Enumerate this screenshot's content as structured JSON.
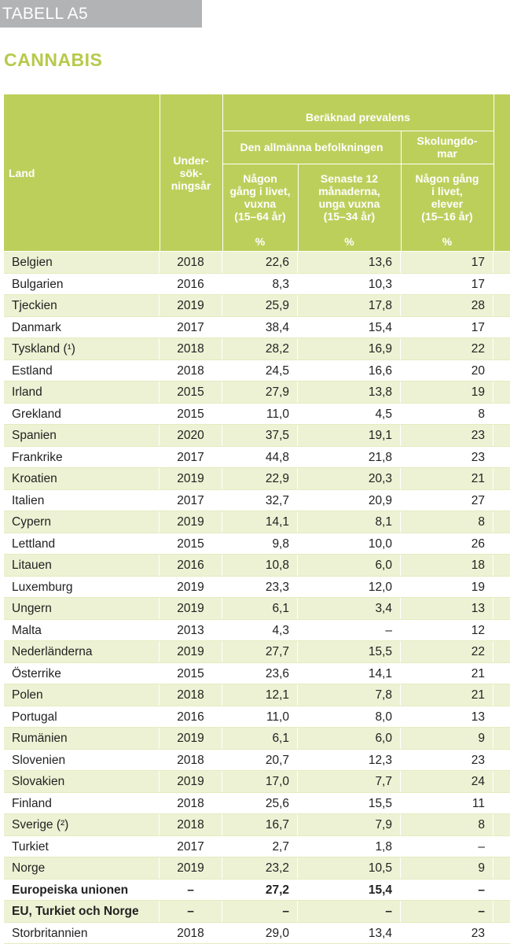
{
  "header": {
    "tab_label": "TABELL A5",
    "title": "CANNABIS"
  },
  "table": {
    "col_land": "Land",
    "col_year": "Under-\nsök-\nningsår",
    "group_label": "Beräknad prevalens",
    "subgroup_general": "Den allmänna befolkningen",
    "subgroup_school": "Skolungdo-\nmar",
    "col_v1": "Någon\ngång i livet,\nvuxna\n(15–64 år)",
    "col_v2": "Senaste 12\nmånaderna,\nunga vuxna\n(15–34 år)",
    "col_v3": "Någon gång\ni livet,\nelever\n(15–16 år)",
    "unit": "%",
    "rows": [
      {
        "land": "Belgien",
        "year": "2018",
        "v1": "22,6",
        "v2": "13,6",
        "v3": "17"
      },
      {
        "land": "Bulgarien",
        "year": "2016",
        "v1": "8,3",
        "v2": "10,3",
        "v3": "17"
      },
      {
        "land": "Tjeckien",
        "year": "2019",
        "v1": "25,9",
        "v2": "17,8",
        "v3": "28"
      },
      {
        "land": "Danmark",
        "year": "2017",
        "v1": "38,4",
        "v2": "15,4",
        "v3": "17"
      },
      {
        "land": "Tyskland (¹)",
        "year": "2018",
        "v1": "28,2",
        "v2": "16,9",
        "v3": "22"
      },
      {
        "land": "Estland",
        "year": "2018",
        "v1": "24,5",
        "v2": "16,6",
        "v3": "20"
      },
      {
        "land": "Irland",
        "year": "2015",
        "v1": "27,9",
        "v2": "13,8",
        "v3": "19"
      },
      {
        "land": "Grekland",
        "year": "2015",
        "v1": "11,0",
        "v2": "4,5",
        "v3": "8"
      },
      {
        "land": "Spanien",
        "year": "2020",
        "v1": "37,5",
        "v2": "19,1",
        "v3": "23"
      },
      {
        "land": "Frankrike",
        "year": "2017",
        "v1": "44,8",
        "v2": "21,8",
        "v3": "23"
      },
      {
        "land": "Kroatien",
        "year": "2019",
        "v1": "22,9",
        "v2": "20,3",
        "v3": "21"
      },
      {
        "land": "Italien",
        "year": "2017",
        "v1": "32,7",
        "v2": "20,9",
        "v3": "27"
      },
      {
        "land": "Cypern",
        "year": "2019",
        "v1": "14,1",
        "v2": "8,1",
        "v3": "8"
      },
      {
        "land": "Lettland",
        "year": "2015",
        "v1": "9,8",
        "v2": "10,0",
        "v3": "26"
      },
      {
        "land": "Litauen",
        "year": "2016",
        "v1": "10,8",
        "v2": "6,0",
        "v3": "18"
      },
      {
        "land": "Luxemburg",
        "year": "2019",
        "v1": "23,3",
        "v2": "12,0",
        "v3": "19"
      },
      {
        "land": "Ungern",
        "year": "2019",
        "v1": "6,1",
        "v2": "3,4",
        "v3": "13"
      },
      {
        "land": "Malta",
        "year": "2013",
        "v1": "4,3",
        "v2": "–",
        "v3": "12"
      },
      {
        "land": "Nederländerna",
        "year": "2019",
        "v1": "27,7",
        "v2": "15,5",
        "v3": "22"
      },
      {
        "land": "Österrike",
        "year": "2015",
        "v1": "23,6",
        "v2": "14,1",
        "v3": "21"
      },
      {
        "land": "Polen",
        "year": "2018",
        "v1": "12,1",
        "v2": "7,8",
        "v3": "21"
      },
      {
        "land": "Portugal",
        "year": "2016",
        "v1": "11,0",
        "v2": "8,0",
        "v3": "13"
      },
      {
        "land": "Rumänien",
        "year": "2019",
        "v1": "6,1",
        "v2": "6,0",
        "v3": "9"
      },
      {
        "land": "Slovenien",
        "year": "2018",
        "v1": "20,7",
        "v2": "12,3",
        "v3": "23"
      },
      {
        "land": "Slovakien",
        "year": "2019",
        "v1": "17,0",
        "v2": "7,7",
        "v3": "24"
      },
      {
        "land": "Finland",
        "year": "2018",
        "v1": "25,6",
        "v2": "15,5",
        "v3": "11"
      },
      {
        "land": "Sverige (²)",
        "year": "2018",
        "v1": "16,7",
        "v2": "7,9",
        "v3": "8"
      },
      {
        "land": "Turkiet",
        "year": "2017",
        "v1": "2,7",
        "v2": "1,8",
        "v3": "–"
      },
      {
        "land": "Norge",
        "year": "2019",
        "v1": "23,2",
        "v2": "10,5",
        "v3": "9"
      },
      {
        "land": "Europeiska unionen",
        "year": "–",
        "v1": "27,2",
        "v2": "15,4",
        "v3": "–",
        "bold": true
      },
      {
        "land": "EU, Turkiet och Norge",
        "year": "–",
        "v1": "–",
        "v2": "–",
        "v3": "–",
        "bold": true
      },
      {
        "land": "Storbritannien",
        "year": "2018",
        "v1": "29,0",
        "v2": "13,4",
        "v3": "23"
      }
    ]
  },
  "colors": {
    "header_green": "#bdcf5b",
    "title_green": "#b8c94a",
    "row_light": "#edf2d4",
    "tab_gray": "#b2b3b5"
  }
}
